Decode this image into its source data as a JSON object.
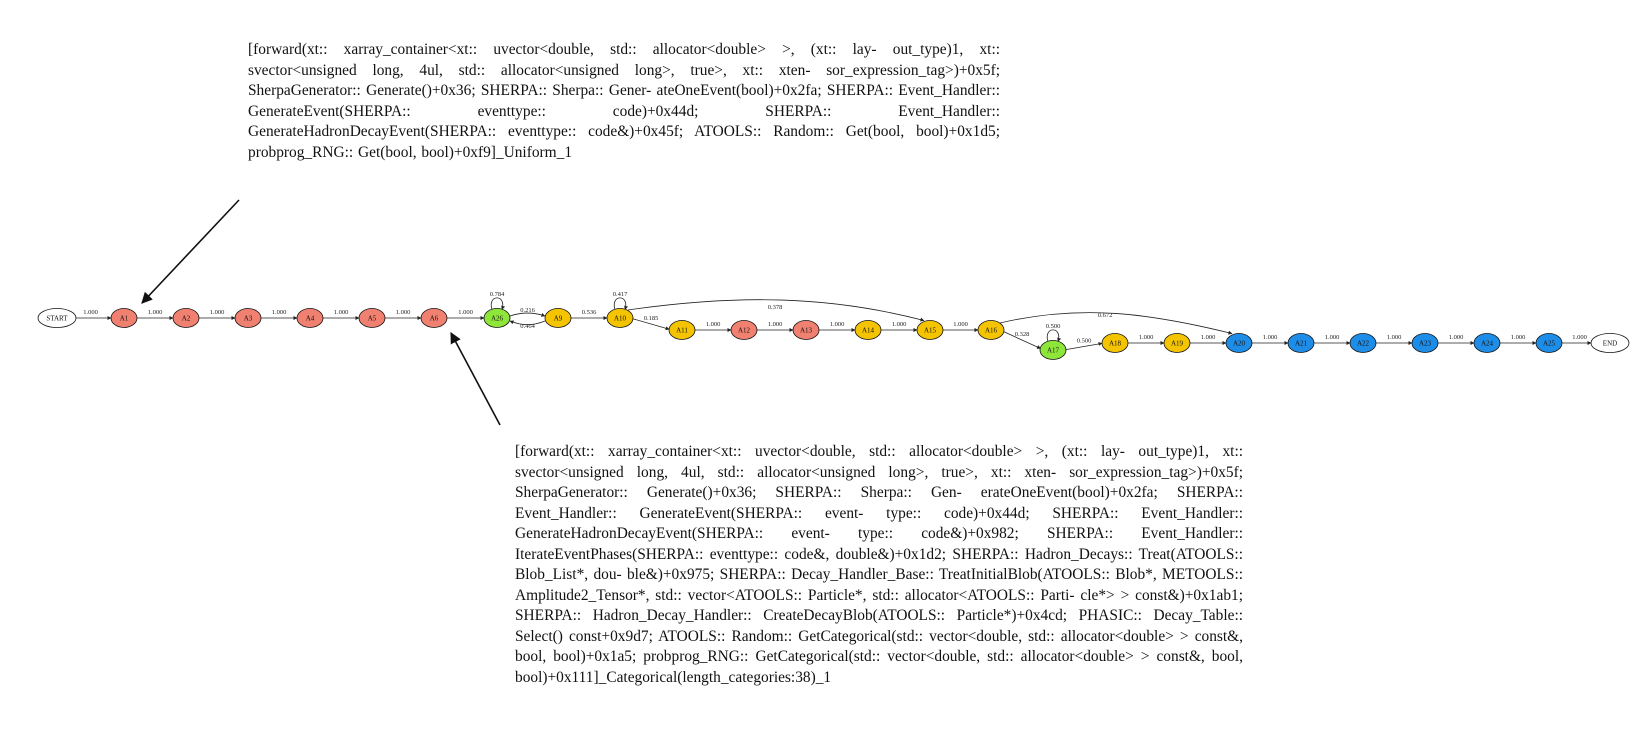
{
  "annotations": {
    "top": "[forward(xt:: xarray_container<xt:: uvector<double, std:: allocator<double> >, (xt:: lay- out_type)1, xt:: svector<unsigned long, 4ul, std:: allocator<unsigned long>, true>, xt:: xten- sor_expression_tag>)+0x5f; SherpaGenerator:: Generate()+0x36; SHERPA:: Sherpa:: Gener- ateOneEvent(bool)+0x2fa; SHERPA:: Event_Handler:: GenerateEvent(SHERPA:: eventtype:: code)+0x44d; SHERPA:: Event_Handler:: GenerateHadronDecayEvent(SHERPA:: eventtype:: code&)+0x45f; ATOOLS:: Random:: Get(bool, bool)+0x1d5; probprog_RNG:: Get(bool, bool)+0xf9]_Uniform_1",
    "bottom": "[forward(xt:: xarray_container<xt:: uvector<double, std:: allocator<double> >, (xt:: lay- out_type)1, xt:: svector<unsigned long, 4ul, std:: allocator<unsigned long>, true>, xt:: xten- sor_expression_tag>)+0x5f; SherpaGenerator:: Generate()+0x36; SHERPA:: Sherpa:: Gen- erateOneEvent(bool)+0x2fa; SHERPA:: Event_Handler:: GenerateEvent(SHERPA:: event- type:: code)+0x44d; SHERPA:: Event_Handler:: GenerateHadronDecayEvent(SHERPA:: event- type:: code&)+0x982; SHERPA:: Event_Handler:: IterateEventPhases(SHERPA:: eventtype:: code&, double&)+0x1d2; SHERPA:: Hadron_Decays:: Treat(ATOOLS:: Blob_List*, dou- ble&)+0x975; SHERPA:: Decay_Handler_Base:: TreatInitialBlob(ATOOLS:: Blob*, METOOLS:: Amplitude2_Tensor*, std:: vector<ATOOLS:: Particle*, std:: allocator<ATOOLS:: Parti- cle*> > const&)+0x1ab1; SHERPA:: Hadron_Decay_Handler:: CreateDecayBlob(ATOOLS:: Particle*)+0x4cd; PHASIC:: Decay_Table:: Select() const+0x9d7; ATOOLS:: Random:: GetCategorical(std:: vector<double, std:: allocator<double> > const&, bool, bool)+0x1a5; probprog_RNG:: GetCategorical(std:: vector<double, std:: allocator<double> > const&, bool, bool)+0x111]_Categorical(length_categories:38)_1"
  },
  "colors": {
    "salmon": "#f08070",
    "yellow": "#f5c400",
    "green": "#8fe63a",
    "blue": "#1e8de8",
    "white": "#ffffff"
  },
  "graph": {
    "nodes": [
      {
        "id": "START",
        "label": "START",
        "color": "white"
      },
      {
        "id": "A1",
        "label": "A1",
        "color": "salmon"
      },
      {
        "id": "A2",
        "label": "A2",
        "color": "salmon"
      },
      {
        "id": "A3",
        "label": "A3",
        "color": "salmon"
      },
      {
        "id": "A4",
        "label": "A4",
        "color": "salmon"
      },
      {
        "id": "A5",
        "label": "A5",
        "color": "salmon"
      },
      {
        "id": "A6",
        "label": "A6",
        "color": "salmon"
      },
      {
        "id": "A26",
        "label": "A26",
        "color": "green"
      },
      {
        "id": "A9",
        "label": "A9",
        "color": "yellow"
      },
      {
        "id": "A10",
        "label": "A10",
        "color": "yellow"
      },
      {
        "id": "A11",
        "label": "A11",
        "color": "yellow"
      },
      {
        "id": "A12",
        "label": "A12",
        "color": "salmon"
      },
      {
        "id": "A13",
        "label": "A13",
        "color": "salmon"
      },
      {
        "id": "A14",
        "label": "A14",
        "color": "yellow"
      },
      {
        "id": "A15",
        "label": "A15",
        "color": "yellow"
      },
      {
        "id": "A16",
        "label": "A16",
        "color": "yellow"
      },
      {
        "id": "A17",
        "label": "A17",
        "color": "green"
      },
      {
        "id": "A18",
        "label": "A18",
        "color": "yellow"
      },
      {
        "id": "A19",
        "label": "A19",
        "color": "yellow"
      },
      {
        "id": "A20",
        "label": "A20",
        "color": "blue"
      },
      {
        "id": "A21",
        "label": "A21",
        "color": "blue"
      },
      {
        "id": "A22",
        "label": "A22",
        "color": "blue"
      },
      {
        "id": "A23",
        "label": "A23",
        "color": "blue"
      },
      {
        "id": "A24",
        "label": "A24",
        "color": "blue"
      },
      {
        "id": "A25",
        "label": "A25",
        "color": "blue"
      },
      {
        "id": "END",
        "label": "END",
        "color": "white"
      }
    ],
    "edges": [
      {
        "from": "START",
        "to": "A1",
        "label": "1.000"
      },
      {
        "from": "A1",
        "to": "A2",
        "label": "1.000"
      },
      {
        "from": "A2",
        "to": "A3",
        "label": "1.000"
      },
      {
        "from": "A3",
        "to": "A4",
        "label": "1.000"
      },
      {
        "from": "A4",
        "to": "A5",
        "label": "1.000"
      },
      {
        "from": "A5",
        "to": "A6",
        "label": "1.000"
      },
      {
        "from": "A6",
        "to": "A26",
        "label": "1.000"
      },
      {
        "from": "A26",
        "to": "A26",
        "label": "0.784"
      },
      {
        "from": "A26",
        "to": "A9",
        "label": "0.216"
      },
      {
        "from": "A9",
        "to": "A26",
        "label": "0.464"
      },
      {
        "from": "A9",
        "to": "A10",
        "label": "0.536"
      },
      {
        "from": "A10",
        "to": "A10",
        "label": "0.417"
      },
      {
        "from": "A10",
        "to": "A11",
        "label": "0.185"
      },
      {
        "from": "A10",
        "to": "A15",
        "label": "0.378"
      },
      {
        "from": "A11",
        "to": "A12",
        "label": "1.000"
      },
      {
        "from": "A12",
        "to": "A13",
        "label": "1.000"
      },
      {
        "from": "A13",
        "to": "A14",
        "label": "1.000"
      },
      {
        "from": "A14",
        "to": "A15",
        "label": "1.000"
      },
      {
        "from": "A15",
        "to": "A16",
        "label": "1.000"
      },
      {
        "from": "A16",
        "to": "A17",
        "label": "0.328"
      },
      {
        "from": "A16",
        "to": "A20",
        "label": "0.672"
      },
      {
        "from": "A17",
        "to": "A17",
        "label": "0.500"
      },
      {
        "from": "A17",
        "to": "A18",
        "label": "0.500"
      },
      {
        "from": "A18",
        "to": "A19",
        "label": "1.000"
      },
      {
        "from": "A19",
        "to": "A20",
        "label": "1.000"
      },
      {
        "from": "A20",
        "to": "A21",
        "label": "1.000"
      },
      {
        "from": "A21",
        "to": "A22",
        "label": "1.000"
      },
      {
        "from": "A22",
        "to": "A23",
        "label": "1.000"
      },
      {
        "from": "A23",
        "to": "A24",
        "label": "1.000"
      },
      {
        "from": "A24",
        "to": "A25",
        "label": "1.000"
      },
      {
        "from": "A25",
        "to": "END",
        "label": "1.000"
      }
    ],
    "pointers": [
      {
        "annotation": "top",
        "target": "A1"
      },
      {
        "annotation": "bottom",
        "target": "A6"
      }
    ]
  }
}
